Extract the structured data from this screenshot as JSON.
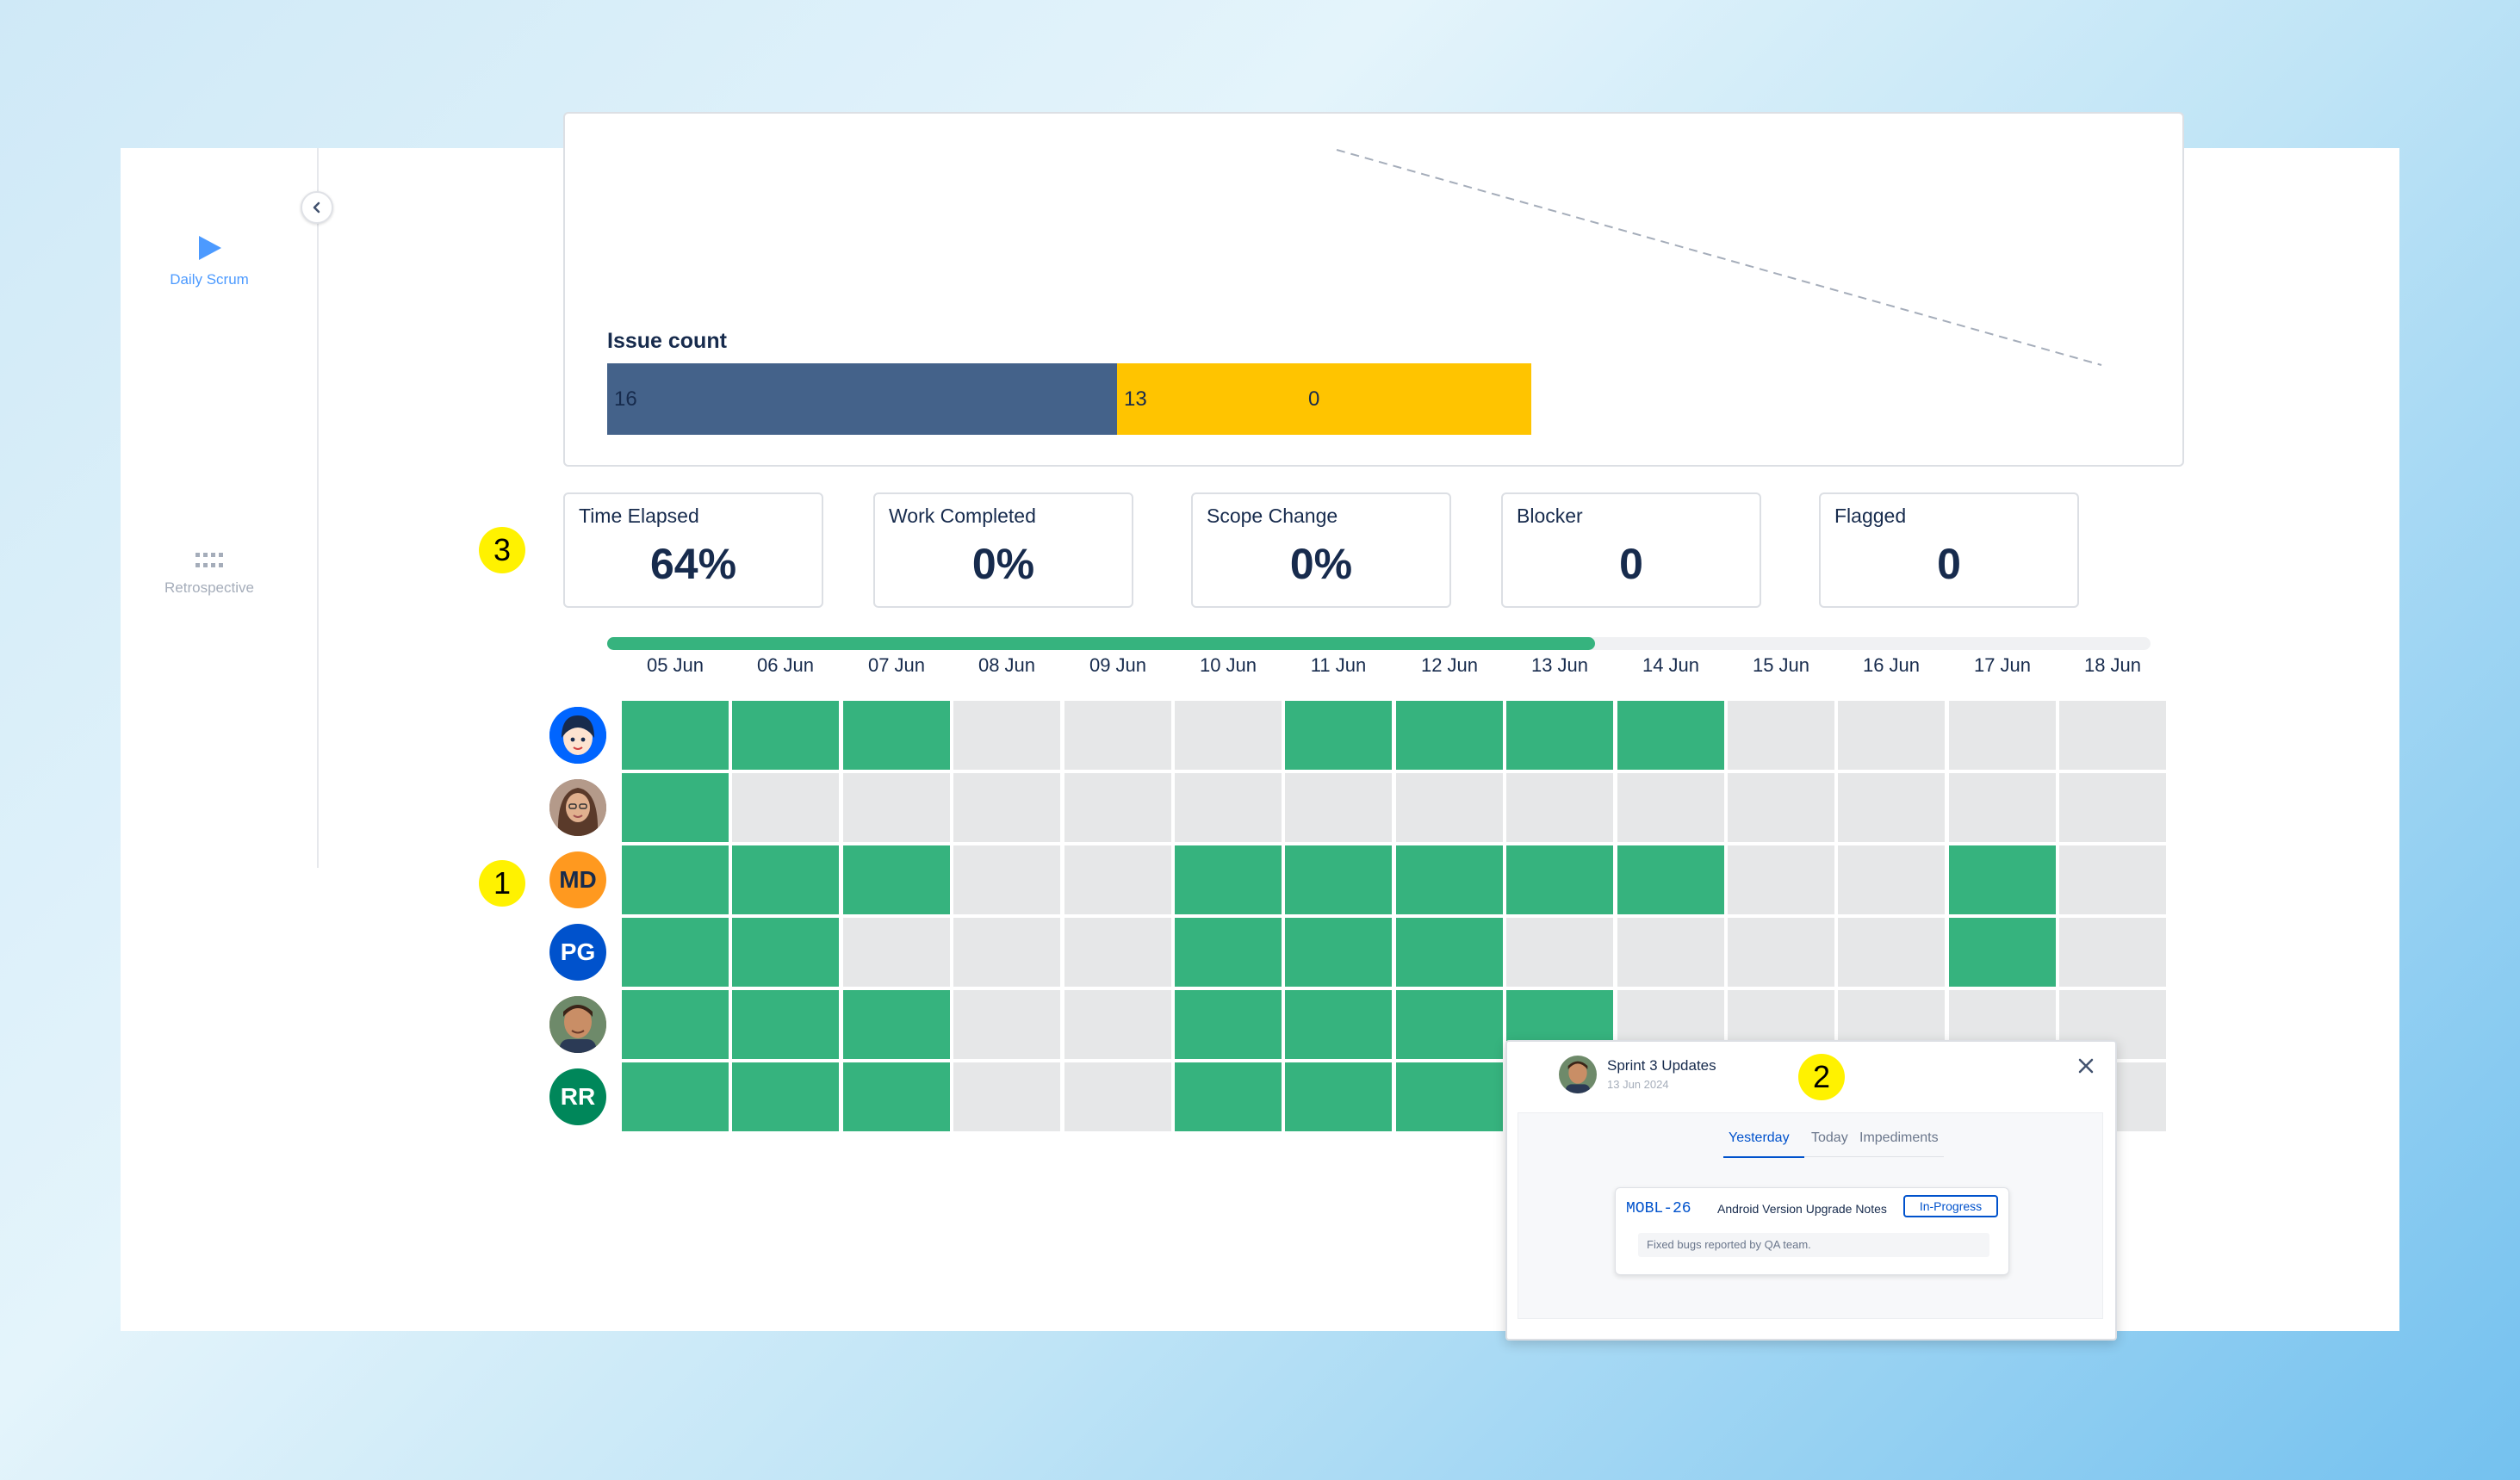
{
  "sidebar": {
    "items": [
      {
        "label": "Daily Scrum",
        "icon": "play-icon",
        "active": true
      },
      {
        "label": "Retrospective",
        "icon": "grid-dots-icon",
        "active": false
      }
    ]
  },
  "issue_count": {
    "title": "Issue count",
    "segments": [
      {
        "value": "16",
        "color": "#44628a",
        "share": 16
      },
      {
        "value": "13",
        "color": "#ffc400",
        "share": 13
      }
    ],
    "remaining": "0"
  },
  "stats": [
    {
      "title": "Time Elapsed",
      "value": "64%"
    },
    {
      "title": "Work Completed",
      "value": "0%"
    },
    {
      "title": "Scope Change",
      "value": "0%"
    },
    {
      "title": "Blocker",
      "value": "0"
    },
    {
      "title": "Flagged",
      "value": "0"
    }
  ],
  "badges": {
    "one": "1",
    "two": "2",
    "three": "3"
  },
  "timeline": {
    "progress_percent": 64,
    "dates": [
      "05 Jun",
      "06 Jun",
      "07 Jun",
      "08 Jun",
      "09 Jun",
      "10 Jun",
      "11 Jun",
      "12 Jun",
      "13 Jun",
      "14 Jun",
      "15 Jun",
      "16 Jun",
      "17 Jun",
      "18 Jun"
    ]
  },
  "team": [
    {
      "initials": "",
      "avatar": "female-cartoon-avatar",
      "color": "#0065ff",
      "days": [
        1,
        1,
        1,
        0,
        0,
        0,
        1,
        1,
        1,
        1,
        0,
        0,
        0,
        0
      ]
    },
    {
      "initials": "",
      "avatar": "woman-photo-avatar",
      "color": "#8a6a5a",
      "days": [
        1,
        0,
        0,
        0,
        0,
        0,
        0,
        0,
        0,
        0,
        0,
        0,
        0,
        0
      ]
    },
    {
      "initials": "MD",
      "avatar": "initials-avatar",
      "color": "#ff991f",
      "days": [
        1,
        1,
        1,
        0,
        0,
        1,
        1,
        1,
        1,
        1,
        0,
        0,
        1,
        0
      ]
    },
    {
      "initials": "PG",
      "avatar": "initials-avatar",
      "color": "#0052cc",
      "days": [
        1,
        1,
        0,
        0,
        0,
        1,
        1,
        1,
        0,
        0,
        0,
        0,
        1,
        0
      ]
    },
    {
      "initials": "",
      "avatar": "man-photo-avatar",
      "color": "#8a5a3a",
      "days": [
        1,
        1,
        1,
        0,
        0,
        1,
        1,
        1,
        1,
        0,
        0,
        0,
        0,
        0
      ]
    },
    {
      "initials": "RR",
      "avatar": "initials-avatar",
      "color": "#00875a",
      "days": [
        1,
        1,
        1,
        0,
        0,
        1,
        1,
        1,
        0,
        0,
        0,
        0,
        0,
        0
      ]
    }
  ],
  "colors": {
    "worked": "#36b37e",
    "idle": "#e6e7e8",
    "accent": "#0052cc"
  },
  "popup": {
    "title": "Sprint 3 Updates",
    "date": "13 Jun 2024",
    "tabs": [
      "Yesterday",
      "Today",
      "Impediments"
    ],
    "active_tab": "Yesterday",
    "issue": {
      "key": "MOBL-26",
      "summary": "Android Version Upgrade Notes",
      "status": "In-Progress",
      "comment": "Fixed bugs reported by QA team."
    }
  }
}
